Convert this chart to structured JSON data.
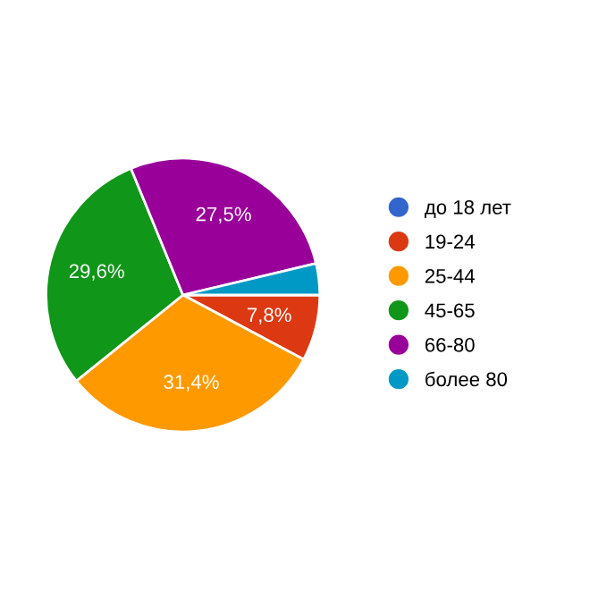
{
  "chart_data": {
    "type": "pie",
    "categories": [
      "до 18 лет",
      "19-24",
      "25-44",
      "45-65",
      "66-80",
      "более 80"
    ],
    "values": [
      0,
      7.8,
      31.4,
      29.6,
      27.5,
      3.7
    ],
    "colors": [
      "#3366cc",
      "#dc3912",
      "#ff9900",
      "#109618",
      "#990099",
      "#0099c6"
    ],
    "value_labels": [
      null,
      "7,8%",
      "31,4%",
      "29,6%",
      "27,5%",
      null
    ],
    "legend": "right"
  }
}
